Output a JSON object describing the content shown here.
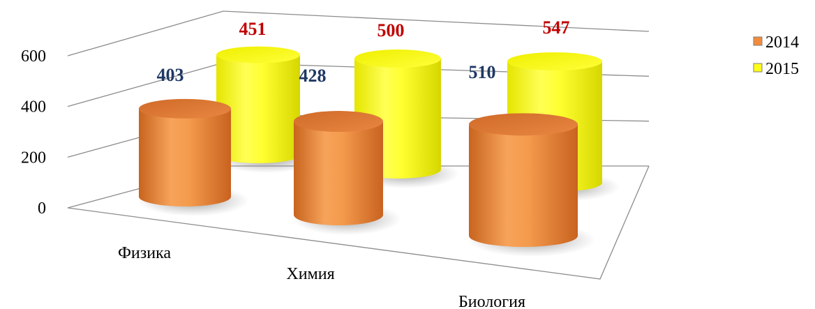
{
  "chart_data": {
    "type": "bar",
    "subtype": "3d-cylinder",
    "categories": [
      "Физика",
      "Химия",
      "Биология"
    ],
    "series": [
      {
        "name": "2014",
        "values": [
          403,
          428,
          510
        ],
        "color": "#F28C3C",
        "label_color": "#1F3864"
      },
      {
        "name": "2015",
        "values": [
          451,
          500,
          547
        ],
        "color": "#FFFF1A",
        "label_color": "#C00000"
      }
    ],
    "y_ticks": [
      "0",
      "200",
      "400",
      "600"
    ],
    "ylim": [
      0,
      600
    ],
    "grid": true,
    "legend_position": "right"
  }
}
